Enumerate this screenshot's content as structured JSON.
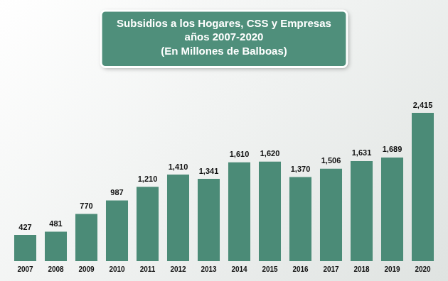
{
  "chart_data": {
    "type": "bar",
    "title": [
      "Subsidios a los Hogares, CSS y Empresas",
      "años 2007-2020",
      "(En Millones de Balboas)"
    ],
    "categories": [
      "2007",
      "2008",
      "2009",
      "2010",
      "2011",
      "2012",
      "2013",
      "2014",
      "2015",
      "2016",
      "2017",
      "2018",
      "2019",
      "2020"
    ],
    "values": [
      427,
      481,
      770,
      987,
      1210,
      1410,
      1341,
      1610,
      1620,
      1370,
      1506,
      1631,
      1689,
      2415
    ],
    "value_labels": [
      "427",
      "481",
      "770",
      "987",
      "1,210",
      "1,410",
      "1,341",
      "1,610",
      "1,620",
      "1,370",
      "1,506",
      "1,631",
      "1,689",
      "2,415"
    ],
    "color": "#4b8b77",
    "data_labels": true,
    "tick_labels": "x",
    "grid": false
  }
}
